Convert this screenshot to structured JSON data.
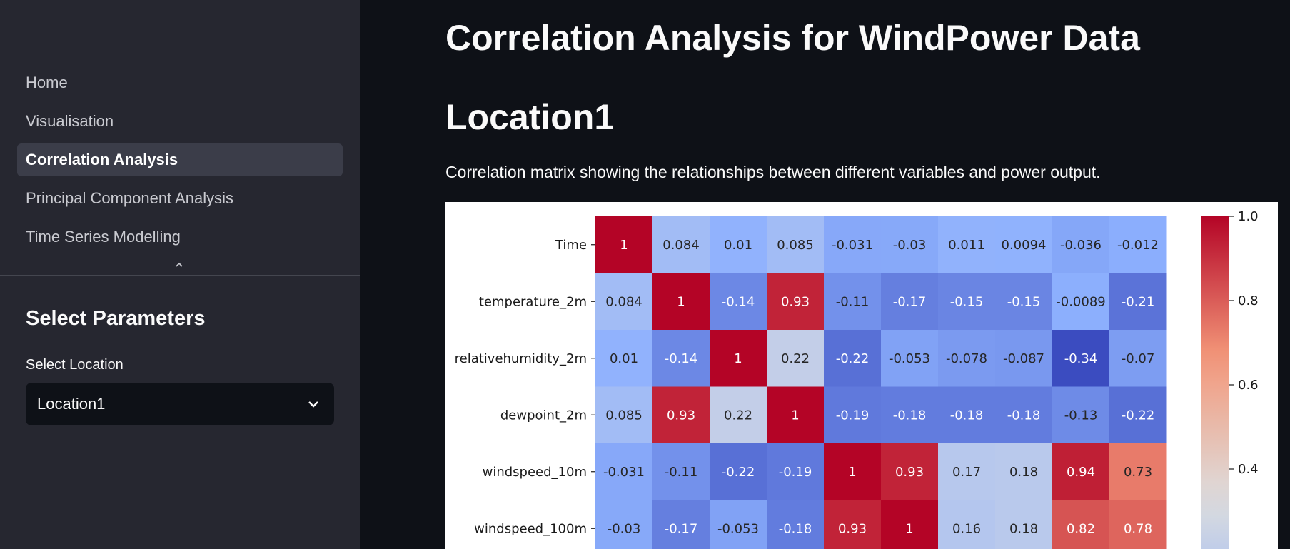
{
  "sidebar": {
    "nav_items": [
      {
        "label": "Home",
        "active": false
      },
      {
        "label": "Visualisation",
        "active": false
      },
      {
        "label": "Correlation Analysis",
        "active": true
      },
      {
        "label": "Principal Component Analysis",
        "active": false
      },
      {
        "label": "Time Series Modelling",
        "active": false
      }
    ],
    "params_heading": "Select Parameters",
    "location_select": {
      "label": "Select Location",
      "value": "Location1"
    }
  },
  "main": {
    "title": "Correlation Analysis for WindPower Data",
    "section_heading": "Location1",
    "description": "Correlation matrix showing the relationships between different variables and power output."
  },
  "chart_data": {
    "type": "heatmap",
    "colormap": "coolwarm",
    "row_labels": [
      "Time",
      "temperature_2m",
      "relativehumidity_2m",
      "dewpoint_2m",
      "windspeed_10m",
      "windspeed_100m"
    ],
    "values": [
      [
        "1",
        "0.084",
        "0.01",
        "0.085",
        "-0.031",
        "-0.03",
        "0.011",
        "0.0094",
        "-0.036",
        "-0.012"
      ],
      [
        "0.084",
        "1",
        "-0.14",
        "0.93",
        "-0.11",
        "-0.17",
        "-0.15",
        "-0.15",
        "-0.0089",
        "-0.21"
      ],
      [
        "0.01",
        "-0.14",
        "1",
        "0.22",
        "-0.22",
        "-0.053",
        "-0.078",
        "-0.087",
        "-0.34",
        "-0.07"
      ],
      [
        "0.085",
        "0.93",
        "0.22",
        "1",
        "-0.19",
        "-0.18",
        "-0.18",
        "-0.18",
        "-0.13",
        "-0.22"
      ],
      [
        "-0.031",
        "-0.11",
        "-0.22",
        "-0.19",
        "1",
        "0.93",
        "0.17",
        "0.18",
        "0.94",
        "0.73"
      ],
      [
        "-0.03",
        "-0.17",
        "-0.053",
        "-0.18",
        "0.93",
        "1",
        "0.16",
        "0.18",
        "0.82",
        "0.78"
      ]
    ],
    "colorbar": {
      "ticks": [
        "1.0",
        "0.8",
        "0.6",
        "0.4"
      ],
      "range": [
        -0.34,
        1.0
      ]
    }
  }
}
